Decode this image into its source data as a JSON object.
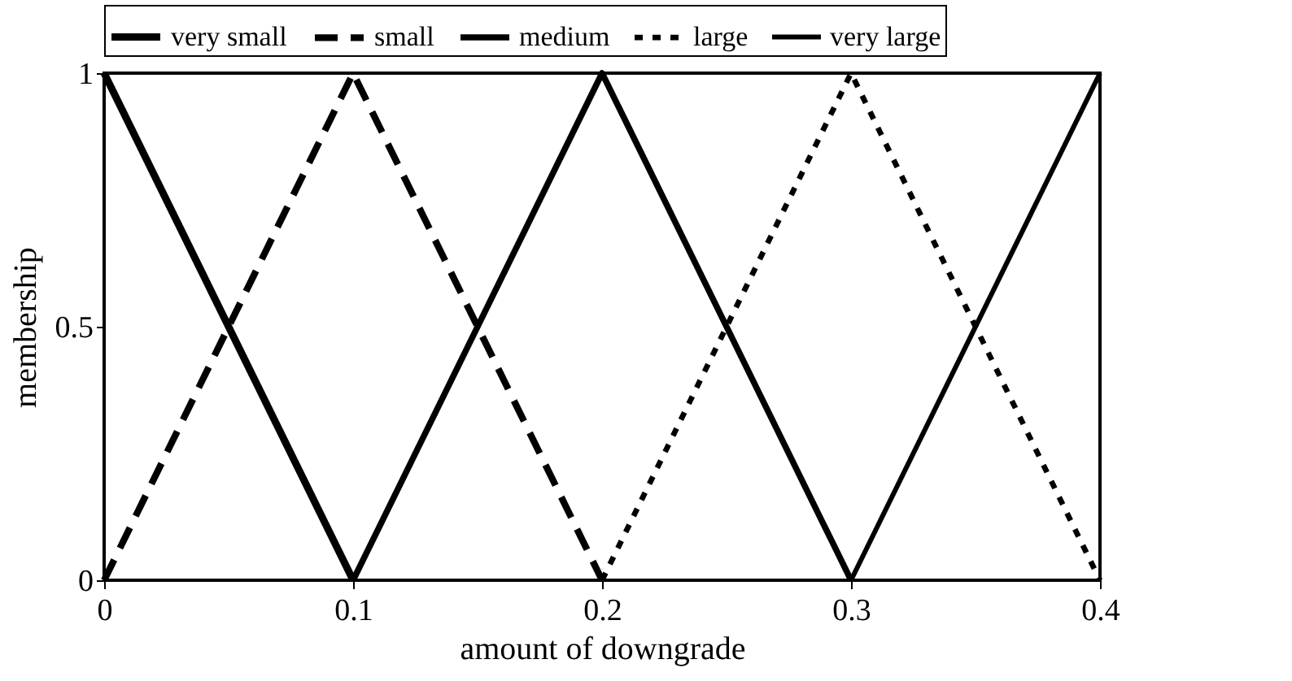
{
  "chart_data": {
    "type": "line",
    "xlabel": "amount of downgrade",
    "ylabel": "membership",
    "xlim": [
      0,
      0.4
    ],
    "xticks": [
      0,
      0.1,
      0.2,
      0.3,
      0.4
    ],
    "ylim": [
      0,
      1
    ],
    "yticks": [
      0,
      0.5,
      1
    ],
    "grid": false,
    "legend": "top",
    "marker": "none",
    "series": [
      {
        "name": "very small",
        "color": "#000000",
        "line_style": "solid",
        "x": [
          0,
          0.1
        ],
        "values": [
          1,
          0
        ]
      },
      {
        "name": "small",
        "color": "#000000",
        "line_style": "dashed",
        "x": [
          0,
          0.1,
          0.2
        ],
        "values": [
          0,
          1,
          0
        ]
      },
      {
        "name": "medium",
        "color": "#000000",
        "line_style": "solid",
        "x": [
          0.1,
          0.2,
          0.3
        ],
        "values": [
          0,
          1,
          0
        ]
      },
      {
        "name": "large",
        "color": "#000000",
        "line_style": "dotted",
        "x": [
          0.2,
          0.3,
          0.4
        ],
        "values": [
          0,
          1,
          0
        ]
      },
      {
        "name": "very large",
        "color": "#000000",
        "line_style": "solid",
        "x": [
          0.3,
          0.4
        ],
        "values": [
          0,
          1
        ]
      }
    ]
  }
}
